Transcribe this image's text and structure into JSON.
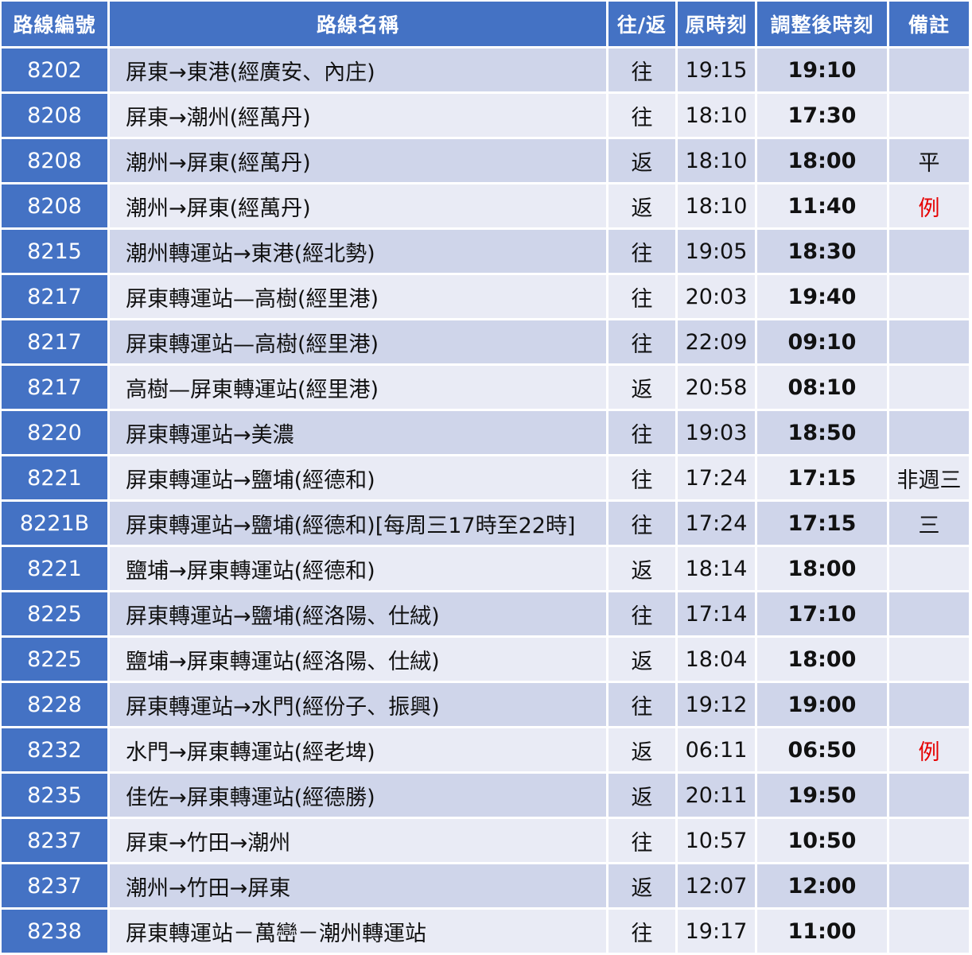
{
  "headers": [
    "路線編號",
    "路線名稱",
    "往/返",
    "原時刻",
    "調整後時刻",
    "備註"
  ],
  "colors": {
    "header_bg": "#4472c4",
    "code_bg": "#4472c4",
    "row_dark": "#cfd5ea",
    "row_light": "#e9ebf5",
    "note_red": "#e60000"
  },
  "rows": [
    {
      "code": "8202",
      "name": "屏東→東港(經廣安、內庄)",
      "dir": "往",
      "orig": "19:15",
      "new": "19:10",
      "note": "",
      "note_red": false
    },
    {
      "code": "8208",
      "name": "屏東→潮州(經萬丹)",
      "dir": "往",
      "orig": "18:10",
      "new": "17:30",
      "note": "",
      "note_red": false
    },
    {
      "code": "8208",
      "name": "潮州→屏東(經萬丹)",
      "dir": "返",
      "orig": "18:10",
      "new": "18:00",
      "note": "平",
      "note_red": false
    },
    {
      "code": "8208",
      "name": "潮州→屏東(經萬丹)",
      "dir": "返",
      "orig": "18:10",
      "new": "11:40",
      "note": "例",
      "note_red": true
    },
    {
      "code": "8215",
      "name": "潮州轉運站→東港(經北勢)",
      "dir": "往",
      "orig": "19:05",
      "new": "18:30",
      "note": "",
      "note_red": false
    },
    {
      "code": "8217",
      "name": "屏東轉運站—高樹(經里港)",
      "dir": "往",
      "orig": "20:03",
      "new": "19:40",
      "note": "",
      "note_red": false
    },
    {
      "code": "8217",
      "name": "屏東轉運站—高樹(經里港)",
      "dir": "往",
      "orig": "22:09",
      "new": "09:10",
      "note": "",
      "note_red": false
    },
    {
      "code": "8217",
      "name": "高樹—屏東轉運站(經里港)",
      "dir": "返",
      "orig": "20:58",
      "new": "08:10",
      "note": "",
      "note_red": false
    },
    {
      "code": "8220",
      "name": "屏東轉運站→美濃",
      "dir": "往",
      "orig": "19:03",
      "new": "18:50",
      "note": "",
      "note_red": false
    },
    {
      "code": "8221",
      "name": "屏東轉運站→鹽埔(經德和)",
      "dir": "往",
      "orig": "17:24",
      "new": "17:15",
      "note": "非週三",
      "note_red": false
    },
    {
      "code": "8221B",
      "name": "屏東轉運站→鹽埔(經德和)[每周三17時至22時]",
      "dir": "往",
      "orig": "17:24",
      "new": "17:15",
      "note": "三",
      "note_red": false
    },
    {
      "code": "8221",
      "name": "鹽埔→屏東轉運站(經德和)",
      "dir": "返",
      "orig": "18:14",
      "new": "18:00",
      "note": "",
      "note_red": false
    },
    {
      "code": "8225",
      "name": "屏東轉運站→鹽埔(經洛陽、仕絨)",
      "dir": "往",
      "orig": "17:14",
      "new": "17:10",
      "note": "",
      "note_red": false
    },
    {
      "code": "8225",
      "name": "鹽埔→屏東轉運站(經洛陽、仕絨)",
      "dir": "返",
      "orig": "18:04",
      "new": "18:00",
      "note": "",
      "note_red": false
    },
    {
      "code": "8228",
      "name": "屏東轉運站→水門(經份子、振興)",
      "dir": "往",
      "orig": "19:12",
      "new": "19:00",
      "note": "",
      "note_red": false
    },
    {
      "code": "8232",
      "name": "水門→屏東轉運站(經老埤)",
      "dir": "返",
      "orig": "06:11",
      "new": "06:50",
      "note": "例",
      "note_red": true
    },
    {
      "code": "8235",
      "name": "佳佐→屏東轉運站(經德勝)",
      "dir": "返",
      "orig": "20:11",
      "new": "19:50",
      "note": "",
      "note_red": false
    },
    {
      "code": "8237",
      "name": "屏東→竹田→潮州",
      "dir": "往",
      "orig": "10:57",
      "new": "10:50",
      "note": "",
      "note_red": false
    },
    {
      "code": "8237",
      "name": "潮州→竹田→屏東",
      "dir": "返",
      "orig": "12:07",
      "new": "12:00",
      "note": "",
      "note_red": false
    },
    {
      "code": "8238",
      "name": "屏東轉運站－萬巒－潮州轉運站",
      "dir": "往",
      "orig": "19:17",
      "new": "11:00",
      "note": "",
      "note_red": false
    }
  ]
}
